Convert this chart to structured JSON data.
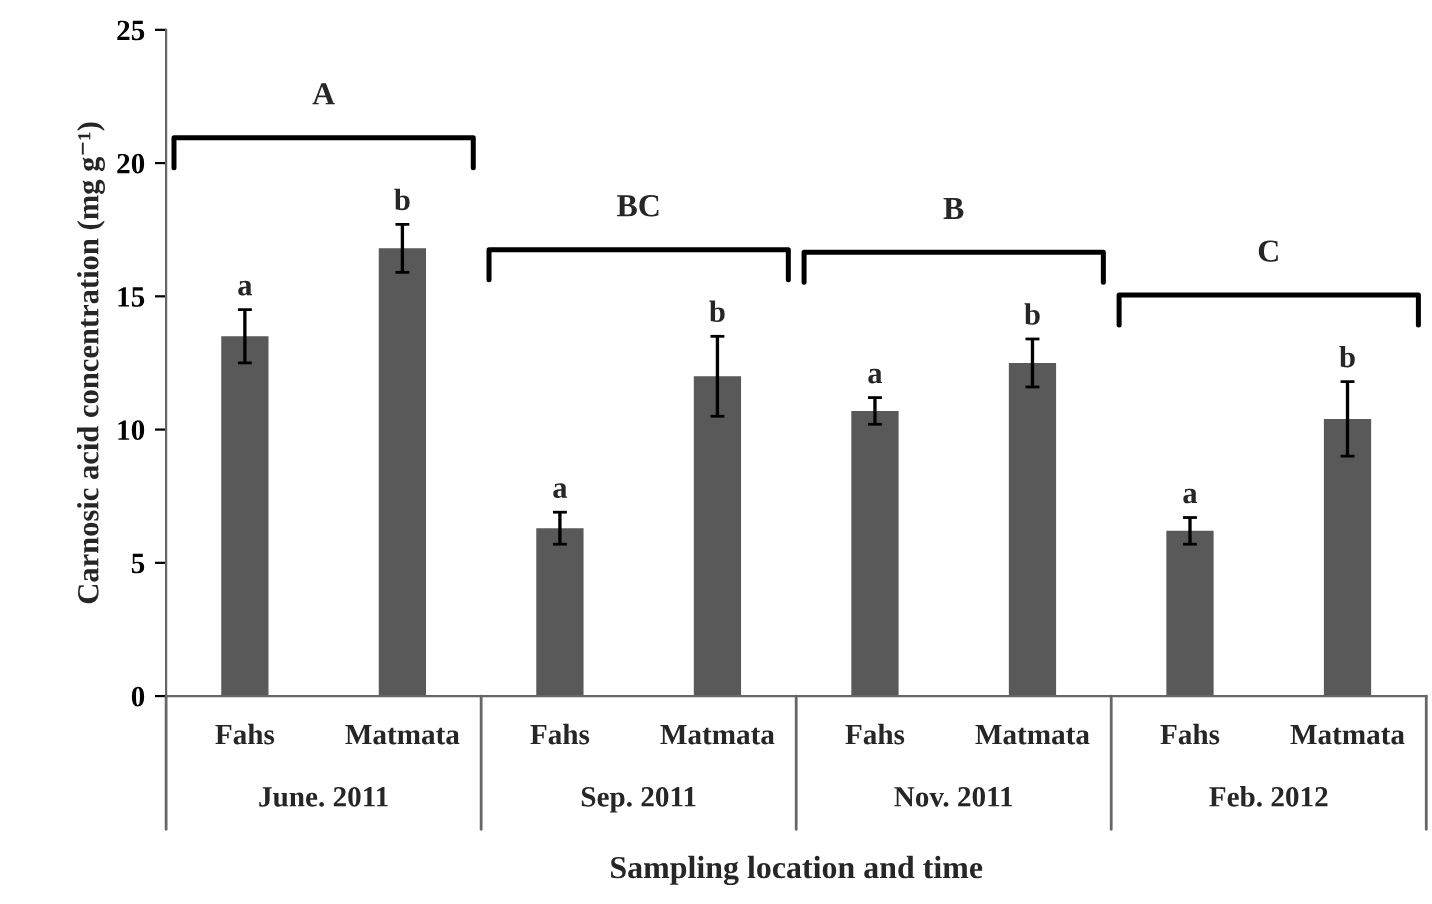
{
  "chart_data": {
    "type": "bar",
    "xlabel": "Sampling location and time",
    "ylabel": "Carnosic acid concentration (mg g⁻¹)",
    "categories": [
      "Fahs",
      "Matmata",
      "Fahs",
      "Matmata",
      "Fahs",
      "Matmata",
      "Fahs",
      "Matmata"
    ],
    "values": [
      13.5,
      16.8,
      6.3,
      12.0,
      10.7,
      12.5,
      6.2,
      10.4
    ],
    "errors": [
      1.0,
      0.9,
      0.6,
      1.5,
      0.5,
      0.9,
      0.5,
      1.4
    ],
    "value_labels": [
      "a",
      "b",
      "a",
      "b",
      "a",
      "b",
      "a",
      "b"
    ],
    "color": "#595959",
    "ylim": [
      0,
      25
    ],
    "yticks": [
      0,
      5,
      10,
      15,
      20,
      25
    ],
    "annotations": [
      "A",
      "BC",
      "B",
      "C",
      "June. 2011",
      "Sep. 2011",
      "Nov. 2011",
      "Feb. 2012"
    ],
    "grid": false
  }
}
